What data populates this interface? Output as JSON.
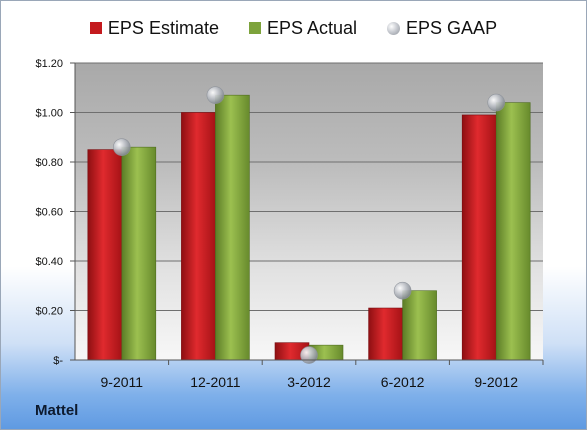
{
  "company": "Mattel",
  "chart_data": {
    "type": "bar",
    "categories": [
      "9-2011",
      "12-2011",
      "3-2012",
      "6-2012",
      "9-2012"
    ],
    "series": [
      {
        "name": "EPS Estimate",
        "values": [
          0.85,
          1.0,
          0.07,
          0.21,
          0.99
        ],
        "color": "#c41a1e"
      },
      {
        "name": "EPS Actual",
        "values": [
          0.86,
          1.07,
          0.06,
          0.28,
          1.04
        ],
        "color": "#7da33c"
      }
    ],
    "gaap": {
      "name": "EPS GAAP",
      "values": [
        0.86,
        1.07,
        0.02,
        0.28,
        1.04
      ]
    },
    "ylim": [
      0,
      1.2
    ],
    "yticks": [
      0,
      0.2,
      0.4,
      0.6,
      0.8,
      1.0,
      1.2
    ],
    "ytick_labels": [
      "$-",
      "$0.20",
      "$0.40",
      "$0.60",
      "$0.80",
      "$1.00",
      "$1.20"
    ],
    "legend_position": "top",
    "grid": true
  }
}
